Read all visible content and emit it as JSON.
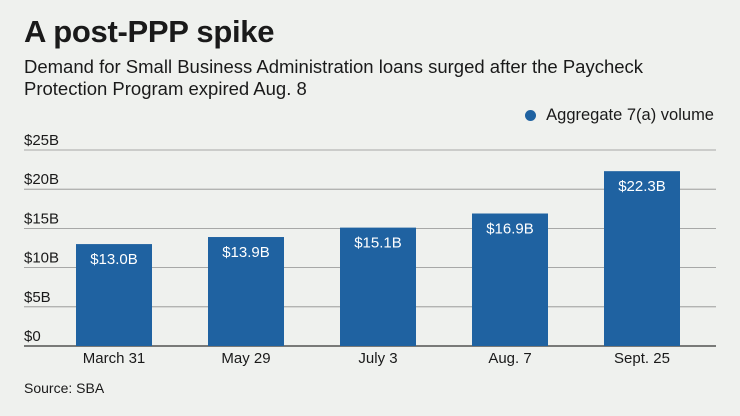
{
  "header": {
    "title": "A post-PPP spike",
    "subtitle": "Demand for Small Business Administration loans surged after the Paycheck Protection Program expired Aug. 8"
  },
  "footer": {
    "source": "Source: SBA"
  },
  "colors": {
    "bar": "#1f62a1",
    "background": "#eff1ee",
    "grid": "#8f8f8f"
  },
  "chart_data": {
    "type": "bar",
    "title": "",
    "xlabel": "",
    "ylabel": "",
    "categories": [
      "March 31",
      "May 29",
      "July 3",
      "Aug. 7",
      "Sept. 25"
    ],
    "series": [
      {
        "name": "Aggregate 7(a) volume",
        "values": [
          13.0,
          13.9,
          15.1,
          16.9,
          22.3
        ],
        "data_labels": [
          "$13.0B",
          "$13.9B",
          "$15.1B",
          "$16.9B",
          "$22.3B"
        ]
      }
    ],
    "ylim": [
      0,
      25
    ],
    "yticks": [
      0,
      5,
      10,
      15,
      20,
      25
    ],
    "ytick_labels": [
      "$0",
      "$5B",
      "$10B",
      "$15B",
      "$20B",
      "$25B"
    ],
    "grid": true,
    "legend_position": "top-right"
  }
}
